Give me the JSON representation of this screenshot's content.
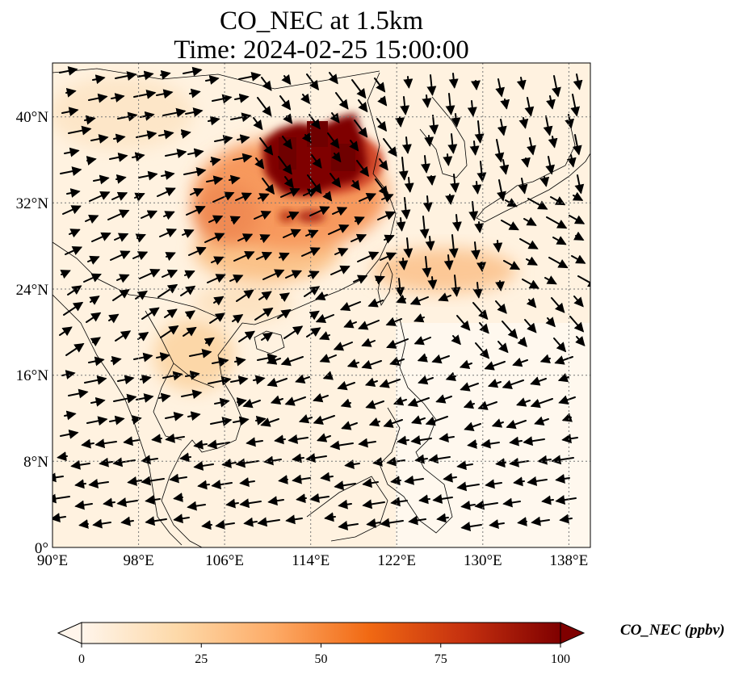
{
  "title": {
    "line1": "CO_NEC at 1.5km",
    "line2": "Time: 2024-02-25 15:00:00"
  },
  "map": {
    "lon_range": [
      90,
      140
    ],
    "lat_range": [
      0,
      45
    ],
    "lon_ticks": [
      {
        "value": 90,
        "label": "90°E"
      },
      {
        "value": 98,
        "label": "98°E"
      },
      {
        "value": 106,
        "label": "106°E"
      },
      {
        "value": 114,
        "label": "114°E"
      },
      {
        "value": 122,
        "label": "122°E"
      },
      {
        "value": 130,
        "label": "130°E"
      },
      {
        "value": 138,
        "label": "138°E"
      }
    ],
    "lat_ticks": [
      {
        "value": 0,
        "label": "0°"
      },
      {
        "value": 8,
        "label": "8°N"
      },
      {
        "value": 16,
        "label": "16°N"
      },
      {
        "value": 24,
        "label": "24°N"
      },
      {
        "value": 32,
        "label": "32°N"
      },
      {
        "value": 40,
        "label": "40°N"
      }
    ],
    "gridlines": true,
    "plume_peak": {
      "lon_range": [
        109,
        120
      ],
      "lat_range": [
        34,
        40
      ],
      "value": "100+"
    }
  },
  "colorbar": {
    "label": "CO_NEC (ppbv)",
    "min": 0,
    "max": 100,
    "extend": "both",
    "ticks": [
      {
        "value": 0,
        "label": "0"
      },
      {
        "value": 25,
        "label": "25"
      },
      {
        "value": 50,
        "label": "50"
      },
      {
        "value": 75,
        "label": "75"
      },
      {
        "value": 100,
        "label": "100"
      }
    ],
    "colors": [
      "#fff5eb",
      "#fdd9a9",
      "#fdab67",
      "#f16913",
      "#c5300f",
      "#7f0000"
    ]
  }
}
